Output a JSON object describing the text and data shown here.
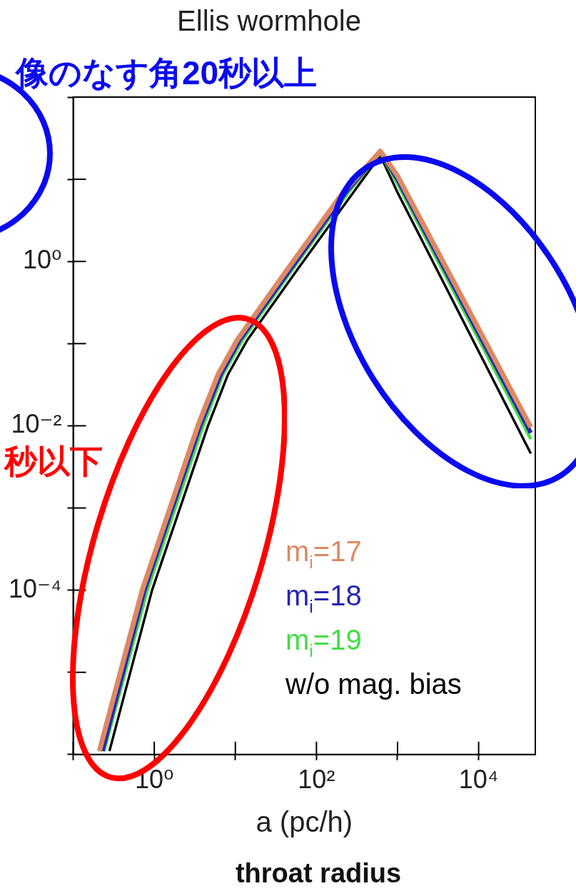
{
  "chart_data": {
    "type": "line",
    "title": "Ellis wormhole",
    "xlabel": "a (pc/h)",
    "annotations": [
      "像のなす角20秒以上",
      "秒以下",
      "throat radius"
    ],
    "log": "xy",
    "legend": "bottom right",
    "xlim": [
      0.1,
      50000
    ],
    "ylim": [
      1e-06,
      100
    ],
    "xticks": [
      {
        "value": 0.1,
        "label": null
      },
      {
        "value": 1,
        "label": "10⁰"
      },
      {
        "value": 10,
        "label": null
      },
      {
        "value": 100,
        "label": "10²"
      },
      {
        "value": 1000,
        "label": null
      },
      {
        "value": 10000,
        "label": "10⁴"
      }
    ],
    "yticks": [
      {
        "value": 1e-06,
        "label": null
      },
      {
        "value": 1e-05,
        "label": null
      },
      {
        "value": 0.0001,
        "label": "10⁻⁴"
      },
      {
        "value": 0.001,
        "label": null
      },
      {
        "value": 0.01,
        "label": "10⁻²"
      },
      {
        "value": 0.1,
        "label": null
      },
      {
        "value": 1,
        "label": "10⁰"
      },
      {
        "value": 10,
        "label": null
      },
      {
        "value": 100,
        "label": null
      }
    ],
    "series": [
      {
        "name": "m$_{i}$=17",
        "color": "#dc8a64",
        "x": [
          0.21,
          0.71,
          3.45,
          6.1,
          10.5,
          45,
          213,
          614,
          1000,
          44000
        ],
        "values": [
          1.1e-06,
          0.0001,
          0.01,
          0.042,
          0.11,
          0.83,
          6.9,
          22,
          11,
          0.0096
        ]
      },
      {
        "name": "m$_{i}$=18",
        "color": "#2626b4",
        "x": [
          0.23,
          0.76,
          3.7,
          6.6,
          11.3,
          49,
          230,
          614,
          1000,
          44000
        ],
        "values": [
          1.1e-06,
          0.0001,
          0.01,
          0.042,
          0.11,
          0.83,
          6.9,
          21.5,
          9.9,
          0.0082
        ]
      },
      {
        "name": "m$_{i}$=19",
        "color": "#44dd44",
        "x": [
          0.24,
          0.82,
          4.0,
          7.0,
          12.2,
          52,
          247,
          614,
          1000,
          44000
        ],
        "values": [
          1.1e-06,
          0.0001,
          0.01,
          0.042,
          0.11,
          0.83,
          6.9,
          21,
          8.8,
          0.0069
        ]
      },
      {
        "name": "w/o mag. bias",
        "color": "#000000",
        "x": [
          0.28,
          0.94,
          4.6,
          8.1,
          14,
          60,
          284,
          614,
          1000,
          44000
        ],
        "values": [
          1.1e-06,
          0.0001,
          0.01,
          0.042,
          0.11,
          0.83,
          6.9,
          19.5,
          6.9,
          0.0046
        ]
      }
    ]
  }
}
